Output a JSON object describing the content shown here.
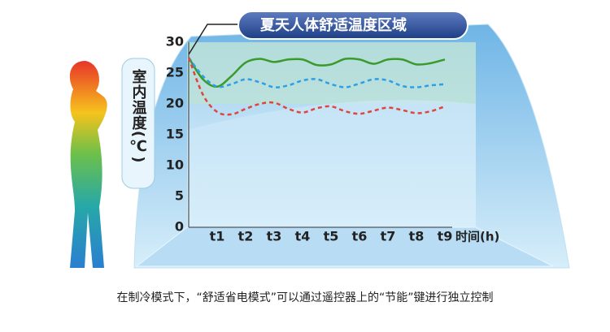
{
  "chart_data": {
    "type": "line",
    "title": "夏天人体舒适温度区域",
    "y_label": "室内温度(℃)",
    "x_label": "时间(h)",
    "x": [
      0,
      0.5,
      1,
      1.5,
      2,
      2.5,
      3,
      3.5,
      4,
      4.5,
      5,
      5.5,
      6,
      6.5,
      7,
      7.5,
      8,
      8.5,
      9
    ],
    "xlim": [
      0,
      9.2
    ],
    "xticks": [
      {
        "value": 1,
        "label": "t1"
      },
      {
        "value": 2,
        "label": "t2"
      },
      {
        "value": 3,
        "label": "t3"
      },
      {
        "value": 4,
        "label": "t4"
      },
      {
        "value": 5,
        "label": "t5"
      },
      {
        "value": 6,
        "label": "t6"
      },
      {
        "value": 7,
        "label": "t7"
      },
      {
        "value": 8,
        "label": "t8"
      },
      {
        "value": 9,
        "label": "t9"
      }
    ],
    "ylim": [
      0,
      30
    ],
    "yticks": [
      0,
      5,
      10,
      15,
      20,
      25,
      30
    ],
    "series": [
      {
        "color": "#3a9a2a",
        "dashed": false,
        "values": [
          27.5,
          24,
          22.8,
          24.5,
          26.7,
          27.3,
          26.8,
          27.2,
          27.2,
          26.3,
          26.4,
          27.3,
          27.2,
          26.5,
          27.2,
          27.2,
          26.4,
          26.6,
          27.2
        ]
      },
      {
        "color": "#2c9fe6",
        "dashed": true,
        "values": [
          27.5,
          24.5,
          22.8,
          23.2,
          24.0,
          23.5,
          22.7,
          23.0,
          23.8,
          24.0,
          23.2,
          22.7,
          23.3,
          24.0,
          23.8,
          22.9,
          22.7,
          23.0,
          23.2
        ]
      },
      {
        "color": "#e0443a",
        "dashed": true,
        "values": [
          27.5,
          21.5,
          18.7,
          18.3,
          19.2,
          20.0,
          20.2,
          19.2,
          18.6,
          19.3,
          19.6,
          18.8,
          18.4,
          18.9,
          19.4,
          19.0,
          18.5,
          18.8,
          19.6
        ]
      }
    ]
  },
  "caption": "在制冷模式下，“舒适省电模式”可以通过遥控器上的“节能”键进行独立控制"
}
